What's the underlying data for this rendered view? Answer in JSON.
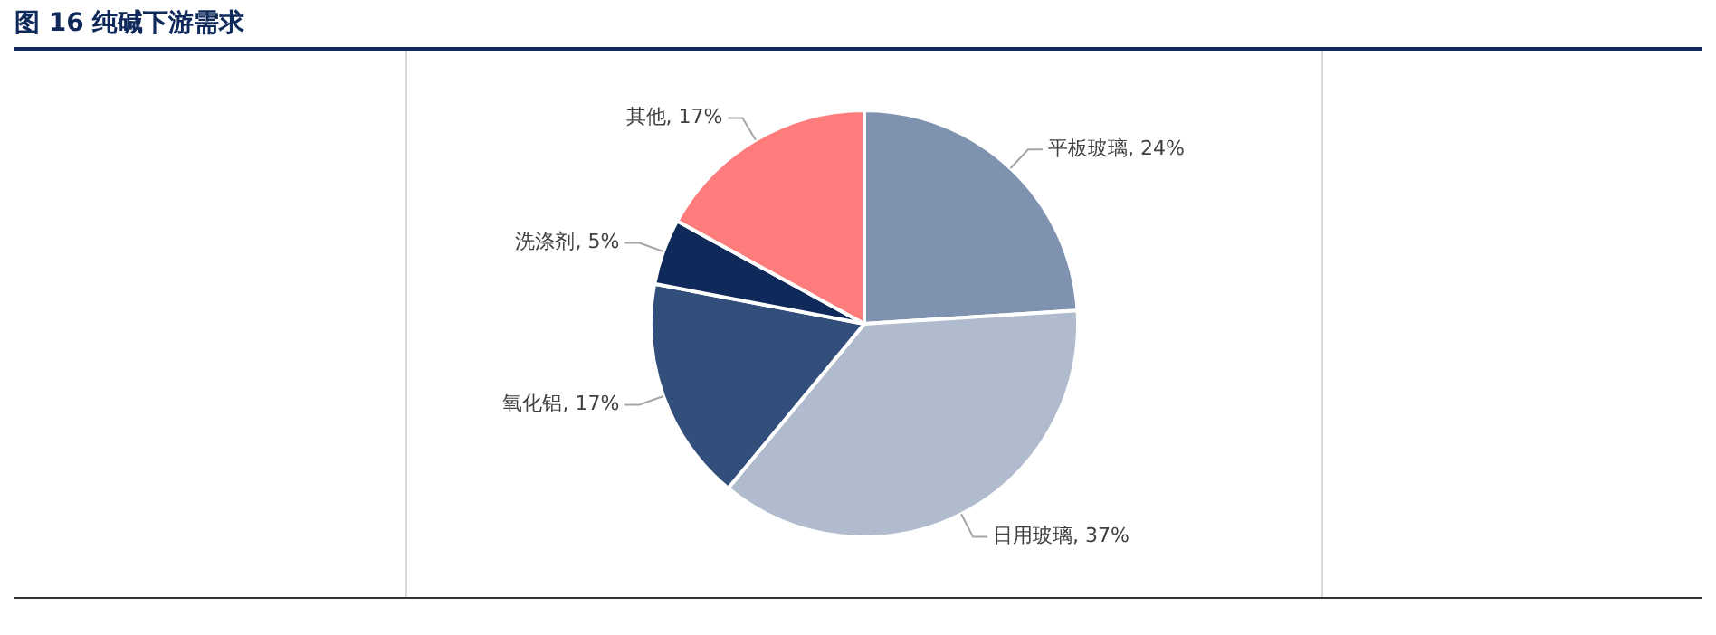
{
  "chart_data": {
    "type": "pie",
    "title": "图 16    纯碱下游需求",
    "categories": [
      "平板玻璃",
      "日用玻璃",
      "氧化铝",
      "洗涤剂",
      "其他"
    ],
    "values": [
      24,
      37,
      17,
      5,
      17
    ],
    "value_labels": [
      "24%",
      "37%",
      "17%",
      "5%",
      "17%"
    ],
    "colors": [
      "#7f93b0",
      "#b0bccd",
      "#324f7b",
      "#0f2a5a",
      "#ff7c7c"
    ],
    "legend": false
  }
}
